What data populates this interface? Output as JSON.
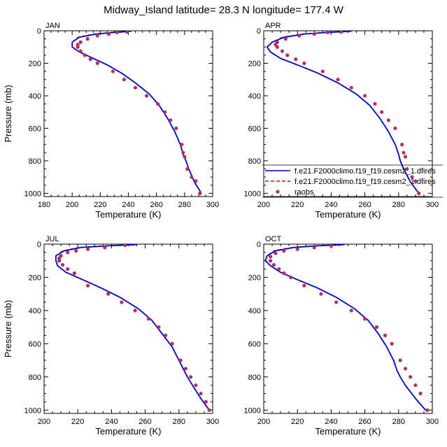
{
  "figure": {
    "title": "Midway_Island  latitude= 28.3 N longitude= 177.4 W"
  },
  "colors": {
    "model_1": "#0000cc",
    "model_2": "#e00000",
    "obs": "#b03060",
    "frame": "#000000"
  },
  "legend": {
    "entries": [
      {
        "label": "f.e21.F2000climo.f19_f19.cesm2_1.dfires",
        "style": "solid",
        "color": "#0000cc"
      },
      {
        "label": "f.e21.F2000climo.f19_f19.cesm2_1.dfires",
        "style": "dashed",
        "color": "#e00000"
      },
      {
        "label": "raobs",
        "style": "marker",
        "color": "#b03060"
      }
    ]
  },
  "chart_data": [
    {
      "type": "line",
      "panel_label": "JAN",
      "xlabel": "Temperature (K)",
      "ylabel": "Pressure (mb)",
      "xlim": [
        180,
        300
      ],
      "ylim": [
        1020,
        0
      ],
      "xticks": [
        180,
        200,
        220,
        240,
        260,
        280,
        300
      ],
      "yticks": [
        0,
        200,
        400,
        600,
        800,
        1000
      ],
      "series": [
        {
          "name": "f.e21.F2000climo.f19_f19.cesm2_1.dfires",
          "style": "solid",
          "x": [
            242,
            230,
            217,
            205,
            200,
            200,
            205,
            215,
            225,
            235,
            245,
            255,
            262,
            268,
            273,
            277,
            279,
            281,
            283,
            287,
            292
          ],
          "y": [
            3,
            10,
            20,
            40,
            70,
            100,
            130,
            170,
            210,
            260,
            320,
            390,
            460,
            540,
            620,
            700,
            760,
            800,
            850,
            930,
            1000
          ]
        },
        {
          "name": "f.e21.F2000climo.f19_f19.cesm2_1.dfires",
          "style": "dashed",
          "x": [
            241,
            229,
            216,
            204,
            200,
            200,
            205,
            215,
            225,
            235,
            245,
            255,
            262,
            268,
            273,
            277,
            279,
            281,
            283,
            287,
            292
          ],
          "y": [
            3,
            10,
            20,
            40,
            70,
            100,
            130,
            170,
            210,
            260,
            320,
            390,
            460,
            540,
            620,
            700,
            760,
            800,
            850,
            930,
            1000
          ]
        },
        {
          "name": "raobs",
          "style": "marker",
          "x": [
            239,
            232,
            226,
            218,
            211,
            206,
            204,
            204,
            206,
            209,
            213,
            218,
            229,
            237,
            245,
            253,
            261,
            266,
            270,
            274,
            278,
            279,
            280,
            282,
            285,
            288,
            291
          ],
          "y": [
            7,
            10,
            20,
            30,
            50,
            70,
            85,
            100,
            125,
            150,
            175,
            200,
            250,
            300,
            350,
            400,
            450,
            500,
            550,
            600,
            700,
            750,
            775,
            850,
            900,
            925,
            1000
          ]
        }
      ]
    },
    {
      "type": "line",
      "panel_label": "APR",
      "xlabel": "Temperature (K)",
      "ylabel": "",
      "xlim": [
        200,
        300
      ],
      "ylim": [
        1020,
        0
      ],
      "xticks": [
        200,
        220,
        240,
        260,
        280,
        300
      ],
      "yticks": [
        0,
        200,
        400,
        600,
        800,
        1000
      ],
      "series": [
        {
          "name": "f.e21.F2000climo.f19_f19.cesm2_1.dfires",
          "style": "solid",
          "x": [
            252,
            238,
            224,
            212,
            205,
            202,
            204,
            210,
            220,
            232,
            244,
            255,
            263,
            269,
            274,
            278,
            280,
            281,
            283,
            287,
            292
          ],
          "y": [
            3,
            10,
            20,
            40,
            70,
            100,
            130,
            170,
            210,
            260,
            320,
            390,
            460,
            540,
            620,
            700,
            760,
            800,
            850,
            930,
            1000
          ]
        },
        {
          "name": "f.e21.F2000climo.f19_f19.cesm2_1.dfires",
          "style": "dashed",
          "x": [
            251,
            237,
            223,
            211,
            205,
            202,
            204,
            210,
            220,
            232,
            244,
            255,
            263,
            269,
            274,
            278,
            280,
            281,
            283,
            287,
            292
          ],
          "y": [
            3,
            10,
            20,
            40,
            70,
            100,
            130,
            170,
            210,
            260,
            320,
            390,
            460,
            540,
            620,
            700,
            760,
            800,
            850,
            930,
            1000
          ]
        },
        {
          "name": "raobs",
          "style": "marker",
          "x": [
            246,
            238,
            230,
            221,
            213,
            208,
            207,
            208,
            211,
            214,
            219,
            224,
            235,
            244,
            252,
            260,
            266,
            270,
            274,
            278,
            282,
            283,
            284,
            285,
            288,
            290,
            292
          ],
          "y": [
            7,
            10,
            20,
            30,
            50,
            70,
            85,
            100,
            125,
            150,
            175,
            200,
            250,
            300,
            350,
            400,
            450,
            500,
            550,
            600,
            700,
            750,
            775,
            850,
            900,
            925,
            1000
          ]
        }
      ]
    },
    {
      "type": "line",
      "panel_label": "JUL",
      "xlabel": "Temperature (K)",
      "ylabel": "Pressure (mb)",
      "xlim": [
        200,
        300
      ],
      "ylim": [
        1020,
        0
      ],
      "xticks": [
        200,
        220,
        240,
        260,
        280,
        300
      ],
      "yticks": [
        0,
        200,
        400,
        600,
        800,
        1000
      ],
      "series": [
        {
          "name": "f.e21.F2000climo.f19_f19.cesm2_1.dfires",
          "style": "solid",
          "x": [
            255,
            238,
            222,
            212,
            207,
            207,
            208,
            213,
            222,
            233,
            245,
            256,
            264,
            270,
            276,
            280,
            283,
            285,
            288,
            293,
            298
          ],
          "y": [
            3,
            10,
            20,
            40,
            70,
            100,
            130,
            170,
            210,
            260,
            320,
            390,
            460,
            540,
            620,
            700,
            760,
            800,
            850,
            930,
            1000
          ]
        },
        {
          "name": "f.e21.F2000climo.f19_f19.cesm2_1.dfires",
          "style": "dashed",
          "x": [
            254,
            237,
            221,
            211,
            207,
            207,
            208,
            213,
            222,
            233,
            245,
            256,
            264,
            270,
            276,
            280,
            283,
            285,
            288,
            293,
            298
          ],
          "y": [
            3,
            10,
            20,
            40,
            70,
            100,
            130,
            170,
            210,
            260,
            320,
            390,
            460,
            540,
            620,
            700,
            760,
            800,
            850,
            930,
            1000
          ]
        },
        {
          "name": "raobs",
          "style": "marker",
          "x": [
            248,
            236,
            226,
            219,
            214,
            210,
            209,
            209,
            211,
            214,
            218,
            226,
            238,
            246,
            254,
            262,
            268,
            272,
            276,
            281,
            284,
            287,
            290,
            293,
            296,
            298
          ],
          "y": [
            7,
            20,
            30,
            40,
            50,
            70,
            85,
            100,
            125,
            150,
            175,
            250,
            300,
            350,
            400,
            450,
            500,
            550,
            600,
            700,
            750,
            800,
            850,
            900,
            950,
            1000
          ]
        }
      ]
    },
    {
      "type": "line",
      "panel_label": "OCT",
      "xlabel": "Temperature (K)",
      "ylabel": "",
      "xlim": [
        200,
        300
      ],
      "ylim": [
        1020,
        0
      ],
      "xticks": [
        200,
        220,
        240,
        260,
        280,
        300
      ],
      "yticks": [
        0,
        200,
        400,
        600,
        800,
        1000
      ],
      "series": [
        {
          "name": "f.e21.F2000climo.f19_f19.cesm2_1.dfires",
          "style": "solid",
          "x": [
            248,
            232,
            218,
            207,
            202,
            201,
            204,
            210,
            219,
            231,
            243,
            254,
            262,
            268,
            273,
            277,
            279,
            281,
            284,
            290,
            296
          ],
          "y": [
            3,
            10,
            20,
            40,
            70,
            100,
            130,
            170,
            210,
            260,
            320,
            390,
            460,
            540,
            620,
            700,
            760,
            800,
            850,
            930,
            1000
          ]
        },
        {
          "name": "f.e21.F2000climo.f19_f19.cesm2_1.dfires",
          "style": "dashed",
          "x": [
            247,
            231,
            217,
            206,
            202,
            201,
            204,
            210,
            219,
            231,
            243,
            254,
            262,
            268,
            273,
            277,
            279,
            281,
            284,
            290,
            296
          ],
          "y": [
            3,
            10,
            20,
            40,
            70,
            100,
            130,
            170,
            210,
            260,
            320,
            390,
            460,
            540,
            620,
            700,
            760,
            800,
            850,
            930,
            1000
          ]
        },
        {
          "name": "raobs",
          "style": "marker",
          "x": [
            240,
            230,
            220,
            212,
            207,
            204,
            204,
            206,
            209,
            212,
            216,
            224,
            234,
            243,
            252,
            260,
            267,
            272,
            276,
            281,
            284,
            287,
            290,
            293,
            297
          ],
          "y": [
            10,
            20,
            30,
            40,
            55,
            75,
            100,
            125,
            150,
            175,
            200,
            250,
            300,
            350,
            400,
            450,
            500,
            550,
            600,
            700,
            750,
            800,
            850,
            900,
            1000
          ]
        }
      ]
    }
  ]
}
